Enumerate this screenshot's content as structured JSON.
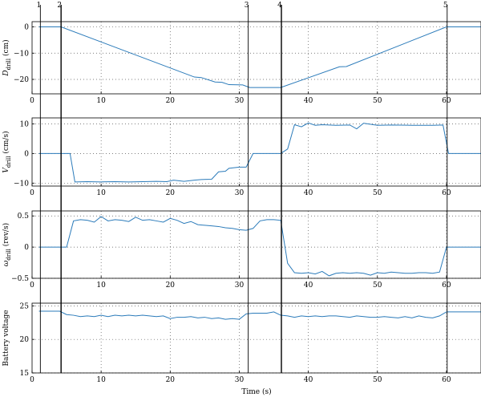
{
  "chart_data": [
    {
      "type": "line",
      "ylabel": "D_drill (cm)",
      "ylabel_main": "D",
      "ylabel_sub": "drill",
      "ylabel_unit": " (cm)",
      "xlim": [
        0,
        65
      ],
      "ylim": [
        -25.5,
        2
      ],
      "xticks": [
        0,
        10,
        20,
        30,
        40,
        50,
        60
      ],
      "yticks": [
        0,
        -10,
        -20
      ],
      "ytick_labels": [
        "0",
        "−10",
        "−20"
      ],
      "xtick_labels": [
        "0",
        "10",
        "20",
        "30",
        "40",
        "50",
        "60"
      ],
      "grid": true,
      "series": [
        {
          "x": [
            1,
            4.2,
            23.5,
            24.5,
            26.5,
            27.5,
            28.5,
            30.5,
            31.5,
            36,
            44.5,
            45.5,
            60,
            65
          ],
          "y": [
            0,
            0,
            -19.1,
            -19.3,
            -21,
            -21.1,
            -22,
            -22.1,
            -23.1,
            -23.1,
            -15.2,
            -15.1,
            0,
            0
          ]
        }
      ]
    },
    {
      "type": "line",
      "ylabel": "V_drill (cm/s)",
      "ylabel_main": "V",
      "ylabel_sub": "drill",
      "ylabel_unit": " (cm/s)",
      "xlim": [
        0,
        65
      ],
      "ylim": [
        -11,
        12
      ],
      "xticks": [
        0,
        10,
        20,
        30,
        40,
        50,
        60
      ],
      "yticks": [
        10,
        0,
        -10
      ],
      "ytick_labels": [
        "10",
        "0",
        "−10"
      ],
      "xtick_labels": [
        "0",
        "10",
        "20",
        "30",
        "40",
        "50",
        "60"
      ],
      "grid": true,
      "series": [
        {
          "x": [
            1,
            4,
            5.5,
            6.2,
            8,
            10,
            12,
            14,
            16,
            18,
            19.5,
            20.5,
            22,
            23.5,
            24.5,
            26,
            27,
            28,
            28.5,
            30,
            31,
            32,
            36,
            37,
            38,
            39,
            40,
            41,
            42,
            44,
            46,
            47,
            48,
            50,
            52,
            55,
            58,
            59.5,
            60.3,
            65
          ],
          "y": [
            0,
            0,
            0,
            -9.6,
            -9.5,
            -9.6,
            -9.5,
            -9.6,
            -9.5,
            -9.4,
            -9.5,
            -9,
            -9.4,
            -9,
            -8.8,
            -8.7,
            -6.2,
            -6,
            -5,
            -4.6,
            -4.6,
            0,
            0,
            1.5,
            9.7,
            9,
            10.3,
            9.5,
            9.7,
            9.5,
            9.6,
            8.3,
            10.2,
            9.5,
            9.6,
            9.5,
            9.5,
            9.6,
            0,
            0
          ]
        }
      ]
    },
    {
      "type": "line",
      "ylabel": "ω_drill (rev/s)",
      "ylabel_main": "ω",
      "ylabel_sub": "drill",
      "ylabel_unit": " (rev/s)",
      "xlim": [
        0,
        65
      ],
      "ylim": [
        -0.5,
        0.58
      ],
      "xticks": [
        0,
        10,
        20,
        30,
        40,
        50,
        60
      ],
      "yticks": [
        0.5,
        0,
        -0.5
      ],
      "ytick_labels": [
        "0.5",
        "0",
        "−0.5"
      ],
      "xtick_labels": [
        "0",
        "10",
        "20",
        "30",
        "40",
        "50",
        "60"
      ],
      "grid": true,
      "series": [
        {
          "x": [
            1,
            4,
            5,
            6,
            7,
            8,
            9,
            10,
            11,
            12,
            13,
            14,
            15,
            16,
            17,
            18,
            19,
            20,
            21,
            22,
            23,
            24,
            25,
            26,
            27,
            28,
            29,
            30,
            31,
            32,
            33,
            34,
            35,
            36,
            37,
            38,
            39,
            40,
            41,
            42,
            43,
            44,
            45,
            46,
            47,
            48,
            49,
            50,
            51,
            52,
            53,
            54,
            55,
            56,
            57,
            58,
            59,
            60,
            65
          ],
          "y": [
            0,
            0,
            0,
            0.42,
            0.44,
            0.43,
            0.4,
            0.49,
            0.42,
            0.44,
            0.43,
            0.41,
            0.48,
            0.43,
            0.44,
            0.42,
            0.4,
            0.46,
            0.43,
            0.38,
            0.41,
            0.36,
            0.35,
            0.34,
            0.33,
            0.31,
            0.3,
            0.28,
            0.27,
            0.3,
            0.42,
            0.44,
            0.44,
            0.43,
            -0.26,
            -0.41,
            -0.42,
            -0.41,
            -0.43,
            -0.39,
            -0.46,
            -0.42,
            -0.41,
            -0.42,
            -0.41,
            -0.42,
            -0.45,
            -0.41,
            -0.42,
            -0.4,
            -0.41,
            -0.42,
            -0.42,
            -0.41,
            -0.41,
            -0.42,
            -0.4,
            0,
            0
          ]
        }
      ]
    },
    {
      "type": "line",
      "ylabel": "Battery voltage",
      "ylabel_main": "Battery voltage",
      "ylabel_sub": "",
      "ylabel_unit": "",
      "xlabel": "Time (s)",
      "xlim": [
        0,
        65
      ],
      "ylim": [
        15,
        25.4
      ],
      "xticks": [
        0,
        10,
        20,
        30,
        40,
        50,
        60
      ],
      "yticks": [
        25,
        20,
        15
      ],
      "ytick_labels": [
        "25",
        "20",
        "15"
      ],
      "xtick_labels": [
        "0",
        "10",
        "20",
        "30",
        "40",
        "50",
        "60"
      ],
      "grid": true,
      "series": [
        {
          "x": [
            1,
            4,
            5,
            6,
            7,
            8,
            9,
            10,
            11,
            12,
            13,
            14,
            15,
            16,
            17,
            18,
            19,
            20,
            21,
            22,
            23,
            24,
            25,
            26,
            27,
            28,
            29,
            30,
            31,
            32,
            33,
            34,
            35,
            36,
            37,
            38,
            39,
            40,
            41,
            42,
            43,
            44,
            45,
            46,
            47,
            48,
            49,
            50,
            51,
            52,
            53,
            54,
            55,
            56,
            57,
            58,
            59,
            60,
            65
          ],
          "y": [
            24.2,
            24.2,
            23.7,
            23.6,
            23.4,
            23.5,
            23.4,
            23.6,
            23.4,
            23.6,
            23.5,
            23.6,
            23.5,
            23.6,
            23.5,
            23.4,
            23.5,
            23.1,
            23.3,
            23.3,
            23.4,
            23.2,
            23.3,
            23.1,
            23.2,
            23.0,
            23.1,
            23.0,
            23.8,
            23.9,
            23.9,
            23.9,
            24.1,
            23.6,
            23.5,
            23.3,
            23.5,
            23.4,
            23.5,
            23.4,
            23.5,
            23.5,
            23.4,
            23.3,
            23.5,
            23.4,
            23.3,
            23.3,
            23.4,
            23.3,
            23.2,
            23.4,
            23.2,
            23.5,
            23.3,
            23.2,
            23.5,
            24.1,
            24.1
          ]
        }
      ]
    }
  ],
  "events": [
    {
      "label": "1",
      "x": 1.2,
      "heavy": false
    },
    {
      "label": "2",
      "x": 4.2,
      "heavy": true
    },
    {
      "label": "3",
      "x": 31.3,
      "heavy": false
    },
    {
      "label": "4",
      "x": 36.1,
      "heavy": true
    },
    {
      "label": "5",
      "x": 60.1,
      "heavy": false
    }
  ],
  "xlabel": "Time (s)",
  "colors": {
    "series": "#2b7bba",
    "frame": "#000000",
    "grid": "#555555"
  }
}
